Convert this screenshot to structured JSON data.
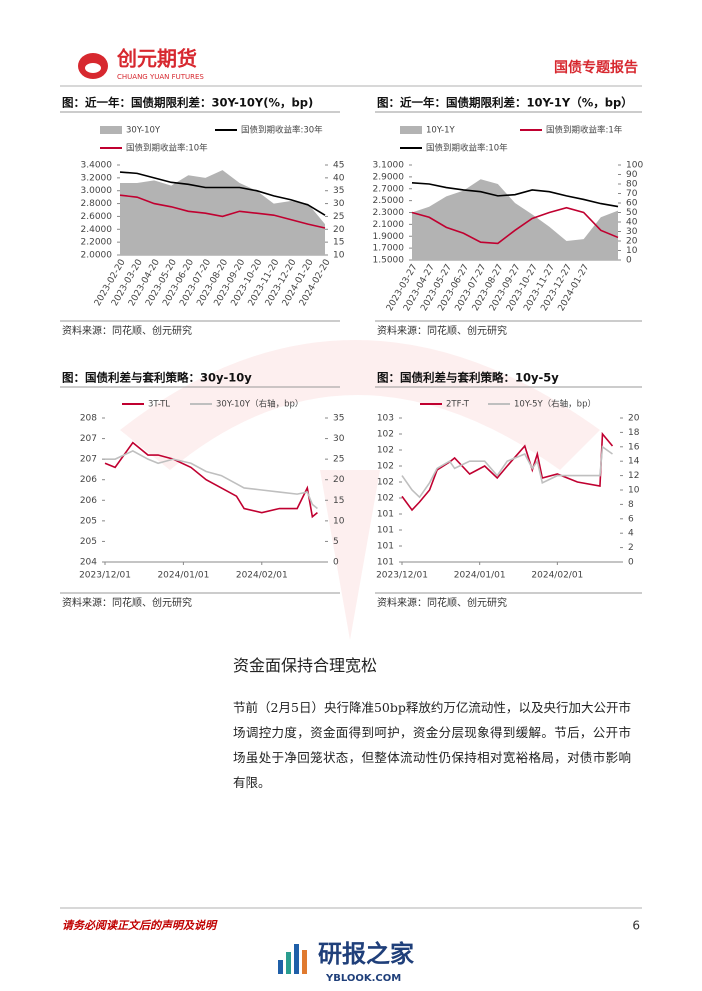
{
  "header": {
    "logo_cn": "创元期货",
    "logo_en": "CHUANG YUAN FUTURES",
    "title": "国债专题报告"
  },
  "chart_data": [
    {
      "type": "line",
      "title": "图：近一年：国债期限利差：30Y-10Y(%，bp)",
      "source": "资料来源：同花顺、创元研究",
      "categories": [
        "2023-02-20",
        "2023-03-20",
        "2023-04-20",
        "2023-05-20",
        "2023-06-20",
        "2023-07-20",
        "2023-08-20",
        "2023-09-20",
        "2023-10-20",
        "2023-11-20",
        "2023-12-20",
        "2024-01-20",
        "2024-02-20"
      ],
      "series": [
        {
          "name": "30Y-10Y",
          "color": "#b3b3b3",
          "style": "area",
          "axis": "y2",
          "values": [
            38,
            38,
            39,
            37,
            41,
            40,
            43,
            38,
            35,
            30,
            31,
            30,
            22
          ]
        },
        {
          "name": "国债到期收益率:30年",
          "color": "#000000",
          "values": [
            3.29,
            3.27,
            3.2,
            3.13,
            3.1,
            3.05,
            3.05,
            3.05,
            3.0,
            2.92,
            2.86,
            2.78,
            2.62
          ]
        },
        {
          "name": "国债到期收益率:10年",
          "color": "#c00030",
          "values": [
            2.93,
            2.9,
            2.8,
            2.75,
            2.68,
            2.65,
            2.6,
            2.68,
            2.65,
            2.62,
            2.55,
            2.48,
            2.42
          ]
        }
      ],
      "ylim": [
        2.0,
        3.4
      ],
      "yticks": [
        {
          "value": 2.0,
          "label": "2.0000"
        },
        {
          "value": 2.2,
          "label": "2.2000"
        },
        {
          "value": 2.4,
          "label": "2.4000"
        },
        {
          "value": 2.6,
          "label": "2.6000"
        },
        {
          "value": 2.8,
          "label": "2.8000"
        },
        {
          "value": 3.0,
          "label": "3.0000"
        },
        {
          "value": 3.2,
          "label": "3.2000"
        },
        {
          "value": 3.4,
          "label": "3.4000"
        }
      ],
      "y2lim": [
        10,
        45
      ],
      "y2ticks": [
        10,
        15,
        20,
        25,
        30,
        35,
        40,
        45
      ]
    },
    {
      "type": "line",
      "title": "图：近一年：国债期限利差：10Y-1Y（%，bp）",
      "source": "资料来源：同花顺、创元研究",
      "categories": [
        "2023-03-27",
        "2023-04-27",
        "2023-05-27",
        "2023-06-27",
        "2023-07-27",
        "2023-08-27",
        "2023-09-27",
        "2023-10-27",
        "2023-11-27",
        "2023-12-27",
        "2024-01-27",
        null,
        null
      ],
      "series": [
        {
          "name": "10Y-1Y",
          "color": "#b3b3b3",
          "style": "area",
          "axis": "y2",
          "values": [
            50,
            56,
            67,
            73,
            85,
            80,
            60,
            48,
            35,
            20,
            22,
            45,
            52
          ]
        },
        {
          "name": "国债到期收益率:1年",
          "color": "#c00030",
          "values": [
            2.3,
            2.22,
            2.05,
            1.95,
            1.8,
            1.78,
            2.0,
            2.2,
            2.3,
            2.38,
            2.3,
            2.0,
            1.88
          ]
        },
        {
          "name": "国债到期收益率:10年",
          "color": "#000000",
          "values": [
            2.8,
            2.78,
            2.72,
            2.68,
            2.65,
            2.58,
            2.6,
            2.68,
            2.65,
            2.58,
            2.52,
            2.45,
            2.4
          ]
        }
      ],
      "ylim": [
        1.5,
        3.1
      ],
      "yticks": [
        {
          "value": 1.5,
          "label": "1.5000"
        },
        {
          "value": 1.7,
          "label": "1.7000"
        },
        {
          "value": 1.9,
          "label": "1.9000"
        },
        {
          "value": 2.1,
          "label": "2.1000"
        },
        {
          "value": 2.3,
          "label": "2.3000"
        },
        {
          "value": 2.5,
          "label": "2.5000"
        },
        {
          "value": 2.7,
          "label": "2.7000"
        },
        {
          "value": 2.9,
          "label": "2.9000"
        },
        {
          "value": 3.1,
          "label": "3.1000"
        }
      ],
      "y2lim": [
        0,
        100
      ],
      "y2ticks": [
        0,
        10,
        20,
        30,
        40,
        50,
        60,
        70,
        80,
        90,
        100
      ]
    },
    {
      "type": "line",
      "title": "图：国债利差与套利策略：30y-10y",
      "source": "资料来源：同花顺、创元研究",
      "x": [
        "2023/12/01",
        "2023/12/05",
        "2023/12/12",
        "2023/12/18",
        "2023/12/22",
        "2023/12/28",
        "2024/01/04",
        "2024/01/10",
        "2024/01/16",
        "2024/01/22",
        "2024/01/25",
        "2024/02/01",
        "2024/02/08",
        "2024/02/15",
        "2024/02/19",
        "2024/02/21",
        "2024/02/23"
      ],
      "series": [
        {
          "name": "3T-TL",
          "color": "#c00030",
          "values": [
            206.4,
            206.3,
            206.9,
            206.6,
            206.6,
            206.5,
            206.3,
            206.0,
            205.8,
            205.6,
            205.3,
            205.2,
            205.3,
            205.3,
            205.8,
            205.1,
            205.2
          ]
        },
        {
          "name": "30Y-10Y（右轴，bp）",
          "color": "#bfbfbf",
          "axis": "y2",
          "values": [
            25,
            25,
            27,
            25,
            24,
            25,
            24,
            22,
            21,
            19,
            18,
            17.5,
            17,
            16.5,
            17,
            14,
            13
          ]
        }
      ],
      "xlim": [
        "2023/12/01",
        "2024/02/26"
      ],
      "xticks": [
        "2023/12/01",
        "2024/01/01",
        "2024/02/01"
      ],
      "ylim": [
        204,
        207.5
      ],
      "yticks": [
        204,
        {
          "value": 204.5,
          "label": "205"
        },
        205,
        {
          "value": 205.5,
          "label": "206"
        },
        206,
        {
          "value": 206.5,
          "label": "207"
        },
        207,
        {
          "value": 207.5,
          "label": "208"
        }
      ],
      "y2lim": [
        0,
        35
      ],
      "y2ticks": [
        0,
        5,
        10,
        15,
        20,
        25,
        30,
        35
      ]
    },
    {
      "type": "line",
      "title": "图：国债利差与套利策略：10y-5y",
      "source": "资料来源：同花顺、创元研究",
      "x": [
        "2023/12/01",
        "2023/12/05",
        "2023/12/08",
        "2023/12/12",
        "2023/12/15",
        "2023/12/20",
        "2023/12/22",
        "2023/12/28",
        "2024/01/03",
        "2024/01/08",
        "2024/01/12",
        "2024/01/19",
        "2024/01/22",
        "2024/01/24",
        "2024/01/26",
        "2024/02/01",
        "2024/02/09",
        "2024/02/18",
        "2024/02/19",
        "2024/02/23"
      ],
      "series": [
        {
          "name": "2TF-T",
          "color": "#c00030",
          "values": [
            101.62,
            101.45,
            101.55,
            101.7,
            101.95,
            102.05,
            102.1,
            101.9,
            102.0,
            101.85,
            102.0,
            102.25,
            101.95,
            102.15,
            101.85,
            101.9,
            101.8,
            101.75,
            102.4,
            102.25
          ]
        },
        {
          "name": "10Y-5Y（右轴，bp）",
          "color": "#bfbfbf",
          "axis": "y2",
          "values": [
            12,
            10,
            9,
            11,
            13,
            14,
            13,
            14,
            14,
            12,
            14,
            15,
            13,
            14,
            11,
            12,
            12,
            12,
            16,
            15
          ]
        }
      ],
      "xlim": [
        "2023/12/01",
        "2024/02/26"
      ],
      "xticks": [
        "2023/12/01",
        "2024/01/01",
        "2024/02/01"
      ],
      "ylim": [
        100.8,
        102.6
      ],
      "yticks": [
        {
          "value": 100.8,
          "label": "101"
        },
        101,
        {
          "value": 101.2,
          "label": "101"
        },
        {
          "value": 101.4,
          "label": "101"
        },
        {
          "value": 101.6,
          "label": "102"
        },
        {
          "value": 101.8,
          "label": "102"
        },
        102,
        {
          "value": 102.2,
          "label": "102"
        },
        {
          "value": 102.4,
          "label": "102"
        },
        {
          "value": 102.6,
          "label": "103"
        }
      ],
      "y2lim": [
        0,
        20
      ],
      "y2ticks": [
        0,
        2,
        4,
        6,
        8,
        10,
        12,
        14,
        16,
        18,
        20
      ]
    }
  ],
  "section": {
    "heading": "资金面保持合理宽松",
    "paragraph": "节前（2月5日）央行降准50bp释放约万亿流动性，以及央行加大公开市场调控力度，资金面得到呵护，资金分层现象得到缓解。节后，公开市场虽处于净回笼状态，但整体流动性仍保持相对宽裕格局，对债市影响有限。"
  },
  "footer": {
    "disclaimer": "请务必阅读正文后的声明及说明",
    "page_number": "6"
  },
  "watermark": {
    "name": "研报之家",
    "site": "YBLOOK.COM"
  }
}
